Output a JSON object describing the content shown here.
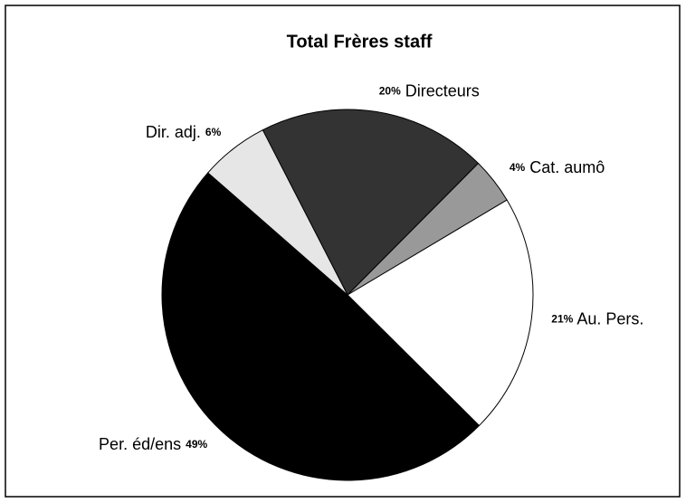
{
  "chart_data": {
    "type": "pie",
    "title": "Total Frères staff",
    "categories": [
      "Directeurs",
      "Cat. aumô",
      "Au. Pers.",
      "Per. éd/ens",
      "Dir. adj."
    ],
    "values": [
      20,
      4,
      21,
      49,
      6
    ],
    "value_labels": [
      "20%",
      "4%",
      "21%",
      "49%",
      "6%"
    ],
    "colors": [
      "#333333",
      "#999999",
      "#ffffff",
      "#000000",
      "#e6e6e6"
    ]
  }
}
